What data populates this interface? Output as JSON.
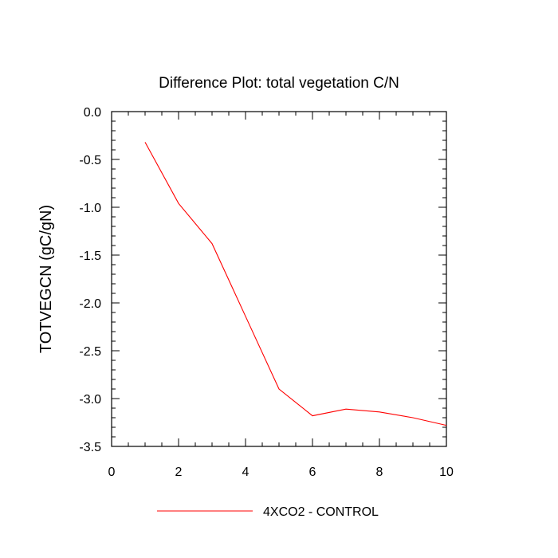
{
  "chart_data": {
    "type": "line",
    "title": "Difference Plot: total vegetation C/N",
    "xlabel": "",
    "ylabel": "TOTVEGCN  (gC/gN)",
    "xlim": [
      0,
      10
    ],
    "ylim": [
      -3.5,
      0.0
    ],
    "x_ticks": [
      0,
      2,
      4,
      6,
      8,
      10
    ],
    "x_tick_labels": [
      "0",
      "2",
      "4",
      "6",
      "8",
      "10"
    ],
    "y_ticks": [
      0.0,
      -0.5,
      -1.0,
      -1.5,
      -2.0,
      -2.5,
      -3.0,
      -3.5
    ],
    "y_tick_labels": [
      "0.0",
      "-0.5",
      "-1.0",
      "-1.5",
      "-2.0",
      "-2.5",
      "-3.0",
      "-3.5"
    ],
    "grid": false,
    "legend_position": "bottom-center",
    "series": [
      {
        "name": "4XCO2 - CONTROL",
        "color": "#ff0000",
        "x": [
          1,
          2,
          3,
          4,
          5,
          6,
          7,
          8,
          9,
          10
        ],
        "y": [
          -0.32,
          -0.96,
          -1.38,
          -2.14,
          -2.9,
          -3.18,
          -3.11,
          -3.14,
          -3.2,
          -3.28
        ]
      }
    ]
  }
}
